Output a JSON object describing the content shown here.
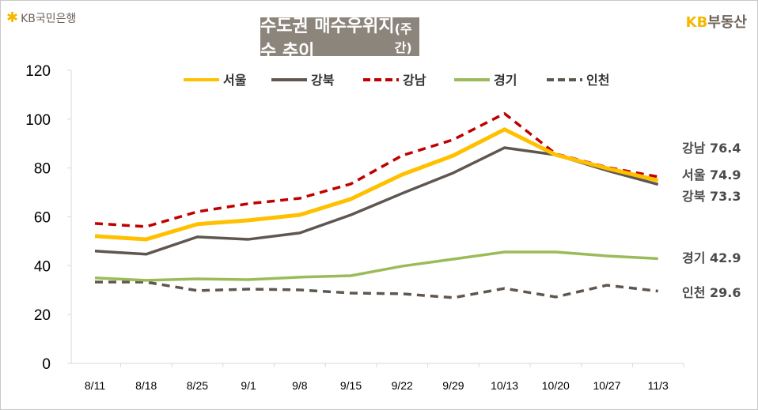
{
  "header": {
    "bank_logo_text": "KB국민은행",
    "brand_logo_kb": "KB",
    "brand_logo_text": "부동산",
    "title": "수도권 매수우위지수 추이",
    "title_suffix": "(주간)"
  },
  "chart_data": {
    "type": "line",
    "title": "수도권 매수우위지수 추이(주간)",
    "xlabel": "",
    "ylabel": "",
    "ylim": [
      0,
      120
    ],
    "yticks": [
      0,
      20,
      40,
      60,
      80,
      100,
      120
    ],
    "categories": [
      "8/11",
      "8/18",
      "8/25",
      "9/1",
      "9/8",
      "9/15",
      "9/22",
      "9/29",
      "10/13",
      "10/20",
      "10/27",
      "11/3"
    ],
    "legend_position": "top",
    "grid": false,
    "series": [
      {
        "name": "서울",
        "color": "#ffc000",
        "dash": false,
        "values": [
          52.1,
          50.8,
          57.0,
          58.6,
          60.8,
          67.3,
          77.3,
          85.1,
          95.8,
          85.4,
          79.9,
          74.9
        ],
        "end_label": "서울",
        "end_value": "74.9"
      },
      {
        "name": "강북",
        "color": "#5f574f",
        "dash": false,
        "values": [
          46.0,
          44.7,
          51.8,
          50.8,
          53.4,
          60.8,
          69.6,
          78.0,
          88.3,
          85.4,
          79.0,
          73.3
        ],
        "end_label": "강북",
        "end_value": "73.3"
      },
      {
        "name": "강남",
        "color": "#c00000",
        "dash": true,
        "values": [
          57.3,
          56.0,
          62.1,
          65.4,
          67.6,
          73.5,
          85.1,
          91.6,
          102.3,
          85.8,
          80.3,
          76.4
        ],
        "end_label": "강남",
        "end_value": "76.4"
      },
      {
        "name": "경기",
        "color": "#9bbb59",
        "dash": false,
        "values": [
          35.0,
          34.0,
          34.6,
          34.3,
          35.3,
          35.9,
          39.8,
          42.7,
          45.6,
          45.6,
          44.0,
          42.9
        ],
        "end_label": "경기",
        "end_value": "42.9"
      },
      {
        "name": "인천",
        "color": "#5f574f",
        "dash": true,
        "values": [
          33.3,
          33.3,
          29.8,
          30.4,
          30.1,
          28.8,
          28.5,
          26.9,
          30.7,
          27.2,
          32.0,
          29.6
        ],
        "end_label": "인천",
        "end_value": "29.6"
      }
    ]
  }
}
